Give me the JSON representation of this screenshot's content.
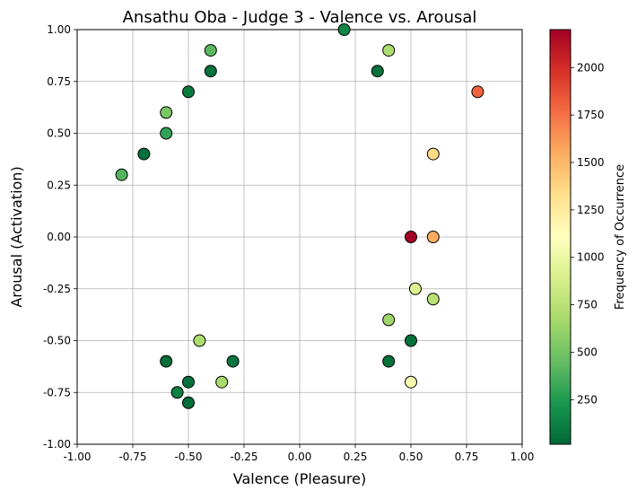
{
  "chart_data": {
    "type": "scatter",
    "title": "Ansathu Oba - Judge 3 - Valence vs. Arousal",
    "xlabel": "Valence (Pleasure)",
    "ylabel": "Arousal (Activation)",
    "xlim": [
      -1,
      1
    ],
    "ylim": [
      -1,
      1
    ],
    "grid": true,
    "xticks": [
      "-1.00",
      "-0.75",
      "-0.50",
      "-0.25",
      "0.00",
      "0.25",
      "0.50",
      "0.75",
      "1.00"
    ],
    "yticks": [
      "-1.00",
      "-0.75",
      "-0.50",
      "-0.25",
      "0.00",
      "0.25",
      "0.50",
      "0.75",
      "1.00"
    ],
    "colorbar": {
      "label": "Frequency of Occurrence",
      "range": [
        15,
        2200
      ],
      "ticks": [
        "250",
        "500",
        "750",
        "1000",
        "1250",
        "1500",
        "1750",
        "2000"
      ],
      "colormap": "RdYlGn_r"
    },
    "points": [
      {
        "x": -0.8,
        "y": 0.3,
        "freq": 400
      },
      {
        "x": -0.7,
        "y": 0.4,
        "freq": 50
      },
      {
        "x": -0.6,
        "y": 0.5,
        "freq": 300
      },
      {
        "x": -0.6,
        "y": 0.6,
        "freq": 520
      },
      {
        "x": -0.5,
        "y": 0.7,
        "freq": 100
      },
      {
        "x": -0.4,
        "y": 0.8,
        "freq": 60
      },
      {
        "x": -0.4,
        "y": 0.9,
        "freq": 420
      },
      {
        "x": 0.2,
        "y": 1.0,
        "freq": 150
      },
      {
        "x": 0.35,
        "y": 0.8,
        "freq": 60
      },
      {
        "x": 0.4,
        "y": 0.9,
        "freq": 700
      },
      {
        "x": 0.8,
        "y": 0.7,
        "freq": 1800
      },
      {
        "x": 0.6,
        "y": 0.4,
        "freq": 1350
      },
      {
        "x": 0.5,
        "y": 0.0,
        "freq": 2200
      },
      {
        "x": 0.6,
        "y": 0.0,
        "freq": 1550
      },
      {
        "x": 0.52,
        "y": -0.25,
        "freq": 900
      },
      {
        "x": 0.6,
        "y": -0.3,
        "freq": 750
      },
      {
        "x": 0.4,
        "y": -0.4,
        "freq": 650
      },
      {
        "x": 0.5,
        "y": -0.5,
        "freq": 60
      },
      {
        "x": 0.4,
        "y": -0.6,
        "freq": 60
      },
      {
        "x": 0.5,
        "y": -0.7,
        "freq": 1050
      },
      {
        "x": -0.45,
        "y": -0.5,
        "freq": 700
      },
      {
        "x": -0.6,
        "y": -0.6,
        "freq": 40
      },
      {
        "x": -0.3,
        "y": -0.6,
        "freq": 80
      },
      {
        "x": -0.35,
        "y": -0.7,
        "freq": 680
      },
      {
        "x": -0.5,
        "y": -0.7,
        "freq": 50
      },
      {
        "x": -0.55,
        "y": -0.75,
        "freq": 120
      },
      {
        "x": -0.5,
        "y": -0.8,
        "freq": 40
      }
    ]
  }
}
